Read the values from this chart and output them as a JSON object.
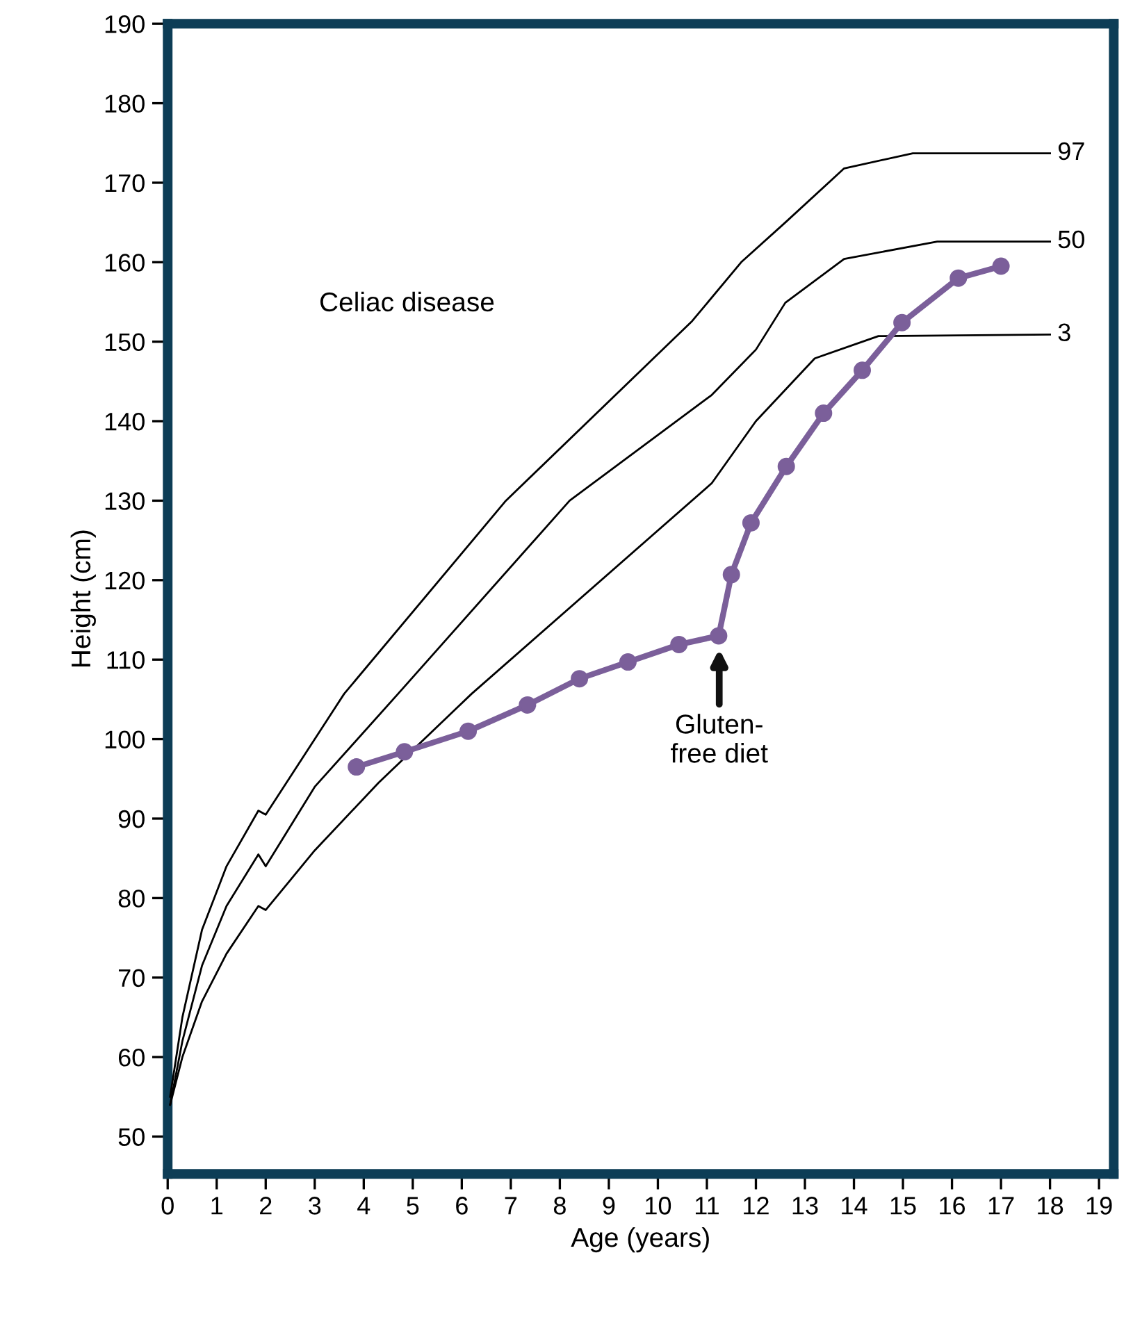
{
  "chart_data": {
    "type": "line",
    "xlabel": "Age (years)",
    "ylabel": "Height (cm)",
    "xlim": [
      0,
      19.3
    ],
    "ylim": [
      45.3,
      190
    ],
    "xticks": [
      0,
      1,
      2,
      3,
      4,
      5,
      6,
      7,
      8,
      9,
      10,
      11,
      12,
      13,
      14,
      15,
      16,
      17,
      18,
      19
    ],
    "yticks": [
      50,
      60,
      70,
      80,
      90,
      100,
      110,
      120,
      130,
      140,
      150,
      160,
      170,
      180,
      190
    ],
    "grid": false,
    "legend": false,
    "annotations": [
      "Celiac disease",
      "Gluten-\nfree diet"
    ],
    "series": [
      {
        "name": "97",
        "color": "#000000",
        "marker": "none",
        "x": [
          0.05,
          0.3,
          0.7,
          1.2,
          1.85,
          2.0,
          3.6,
          6.9,
          10.7,
          11.7,
          12.6,
          13.8,
          15.2,
          18.0
        ],
        "values": [
          55,
          65,
          76,
          84,
          91,
          90.5,
          105.7,
          130,
          152.6,
          160,
          165,
          171.8,
          173.7,
          173.7
        ]
      },
      {
        "name": "50",
        "color": "#000000",
        "marker": "none",
        "x": [
          0.05,
          0.3,
          0.7,
          1.2,
          1.85,
          2.0,
          3.0,
          4.7,
          8.2,
          11.1,
          12.0,
          12.6,
          13.8,
          15.7,
          18.0
        ],
        "values": [
          54,
          62,
          71.5,
          79,
          85.5,
          84,
          94,
          105.7,
          130,
          143.3,
          149,
          154.9,
          160.4,
          162.6,
          162.6
        ]
      },
      {
        "name": "3",
        "color": "#000000",
        "marker": "none",
        "x": [
          0.05,
          0.3,
          0.7,
          1.2,
          1.85,
          2.0,
          3.0,
          4.3,
          6.2,
          11.1,
          12.0,
          13.2,
          14.5,
          18.0
        ],
        "values": [
          54,
          60,
          67,
          73,
          79,
          78.5,
          86,
          94.5,
          105.7,
          132.2,
          140,
          147.9,
          150.7,
          150.9
        ]
      },
      {
        "color": "#7b5f9a",
        "marker": "circle",
        "x": [
          3.85,
          4.83,
          6.13,
          7.34,
          8.4,
          9.39,
          10.43,
          11.24,
          11.5,
          11.9,
          12.62,
          13.38,
          14.17,
          14.98,
          16.13,
          17.0
        ],
        "values": [
          96.5,
          98.4,
          101.0,
          104.3,
          107.6,
          109.7,
          111.9,
          113.0,
          120.7,
          127.2,
          134.3,
          141.0,
          146.4,
          152.4,
          158.0,
          159.5
        ]
      }
    ]
  }
}
